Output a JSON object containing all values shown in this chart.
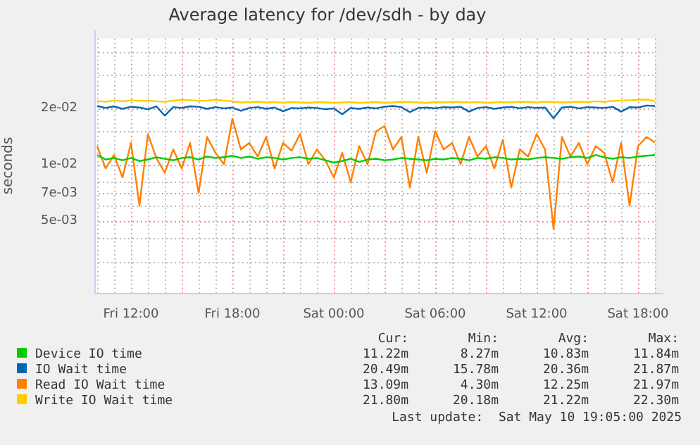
{
  "chart_data": {
    "type": "line",
    "title": "Average latency for /dev/sdh - by day",
    "ylabel": "seconds",
    "log": "y",
    "grid": true,
    "legend": "bottom",
    "marker": "none",
    "line_style": "solid",
    "x": [
      "2025-05-09T10:00",
      "2025-05-09T10:30",
      "2025-05-09T11:00",
      "2025-05-09T11:30",
      "2025-05-09T12:00",
      "2025-05-09T12:30",
      "2025-05-09T13:00",
      "2025-05-09T13:30",
      "2025-05-09T14:00",
      "2025-05-09T14:30",
      "2025-05-09T15:00",
      "2025-05-09T15:30",
      "2025-05-09T16:00",
      "2025-05-09T16:30",
      "2025-05-09T17:00",
      "2025-05-09T17:30",
      "2025-05-09T18:00",
      "2025-05-09T18:30",
      "2025-05-09T19:00",
      "2025-05-09T19:30",
      "2025-05-09T20:00",
      "2025-05-09T20:30",
      "2025-05-09T21:00",
      "2025-05-09T21:30",
      "2025-05-09T22:00",
      "2025-05-09T22:30",
      "2025-05-09T23:00",
      "2025-05-09T23:30",
      "2025-05-10T00:00",
      "2025-05-10T00:30",
      "2025-05-10T01:00",
      "2025-05-10T01:30",
      "2025-05-10T02:00",
      "2025-05-10T02:30",
      "2025-05-10T03:00",
      "2025-05-10T03:30",
      "2025-05-10T04:00",
      "2025-05-10T04:30",
      "2025-05-10T05:00",
      "2025-05-10T05:30",
      "2025-05-10T06:00",
      "2025-05-10T06:30",
      "2025-05-10T07:00",
      "2025-05-10T07:30",
      "2025-05-10T08:00",
      "2025-05-10T08:30",
      "2025-05-10T09:00",
      "2025-05-10T09:30",
      "2025-05-10T10:00",
      "2025-05-10T10:30",
      "2025-05-10T11:00",
      "2025-05-10T11:30",
      "2025-05-10T12:00",
      "2025-05-10T12:30",
      "2025-05-10T13:00",
      "2025-05-10T13:30",
      "2025-05-10T14:00",
      "2025-05-10T14:30",
      "2025-05-10T15:00",
      "2025-05-10T15:30",
      "2025-05-10T16:00",
      "2025-05-10T16:30",
      "2025-05-10T17:00",
      "2025-05-10T17:30",
      "2025-05-10T18:00",
      "2025-05-10T18:30",
      "2025-05-10T19:00"
    ],
    "xlim": [
      "2025-05-09T09:50",
      "2025-05-10T19:00"
    ],
    "xticks": [
      {
        "value": "2025-05-09T12:00",
        "label": "Fri 12:00"
      },
      {
        "value": "2025-05-09T18:00",
        "label": "Fri 18:00"
      },
      {
        "value": "2025-05-10T00:00",
        "label": "Sat 00:00"
      },
      {
        "value": "2025-05-10T06:00",
        "label": "Sat 06:00"
      },
      {
        "value": "2025-05-10T12:00",
        "label": "Sat 12:00"
      },
      {
        "value": "2025-05-10T18:00",
        "label": "Sat 18:00"
      }
    ],
    "ylim": [
      0.00205,
      0.047
    ],
    "yticks": [
      {
        "value": 0.003,
        "label": null
      },
      {
        "value": 0.004,
        "label": null
      },
      {
        "value": 0.005,
        "label": "5e-03"
      },
      {
        "value": 0.006,
        "label": null
      },
      {
        "value": 0.007,
        "label": "7e-03"
      },
      {
        "value": 0.008,
        "label": null
      },
      {
        "value": 0.01,
        "label": "1e-02"
      },
      {
        "value": 0.015,
        "label": null
      },
      {
        "value": 0.02,
        "label": "2e-02"
      },
      {
        "value": 0.03,
        "label": null
      },
      {
        "value": 0.04,
        "label": null
      }
    ],
    "series": [
      {
        "name": "Device IO time",
        "color": "#00cc00",
        "values": [
          0.0112,
          0.0106,
          0.0108,
          0.0105,
          0.0108,
          0.0104,
          0.0106,
          0.0109,
          0.0107,
          0.0105,
          0.0108,
          0.0109,
          0.0106,
          0.011,
          0.0108,
          0.0109,
          0.0111,
          0.0108,
          0.011,
          0.0107,
          0.0109,
          0.0108,
          0.0106,
          0.0108,
          0.0109,
          0.0107,
          0.0108,
          0.0105,
          0.0102,
          0.0104,
          0.0107,
          0.0103,
          0.0106,
          0.0107,
          0.0105,
          0.0106,
          0.0108,
          0.0107,
          0.0106,
          0.0105,
          0.0107,
          0.0106,
          0.0108,
          0.0107,
          0.0105,
          0.0108,
          0.0107,
          0.0109,
          0.0108,
          0.0106,
          0.0107,
          0.0106,
          0.0108,
          0.0109,
          0.0108,
          0.0107,
          0.0109,
          0.011,
          0.0108,
          0.0112,
          0.0109,
          0.0107,
          0.0109,
          0.0108,
          0.011,
          0.0111,
          0.0112
        ]
      },
      {
        "name": "IO Wait time",
        "color": "#0066b3",
        "values": [
          0.0205,
          0.02,
          0.0204,
          0.0198,
          0.0203,
          0.0201,
          0.0197,
          0.0204,
          0.0182,
          0.0202,
          0.02,
          0.0204,
          0.0203,
          0.0198,
          0.0202,
          0.0199,
          0.0201,
          0.0193,
          0.02,
          0.0202,
          0.0198,
          0.0201,
          0.0192,
          0.02,
          0.0199,
          0.0201,
          0.02,
          0.0197,
          0.0199,
          0.0185,
          0.02,
          0.0198,
          0.0201,
          0.0199,
          0.0203,
          0.0205,
          0.0202,
          0.019,
          0.02,
          0.0201,
          0.0199,
          0.0202,
          0.0201,
          0.0203,
          0.0191,
          0.02,
          0.0202,
          0.0198,
          0.0201,
          0.0203,
          0.0199,
          0.0202,
          0.02,
          0.0201,
          0.0176,
          0.0201,
          0.0203,
          0.0199,
          0.0202,
          0.0201,
          0.02,
          0.0203,
          0.0191,
          0.0202,
          0.0201,
          0.0206,
          0.0205
        ]
      },
      {
        "name": "Read IO Wait time",
        "color": "#ff8000",
        "values": [
          0.0125,
          0.0095,
          0.0112,
          0.0085,
          0.013,
          0.006,
          0.0145,
          0.0108,
          0.009,
          0.012,
          0.0095,
          0.013,
          0.007,
          0.014,
          0.0115,
          0.01,
          0.0175,
          0.012,
          0.013,
          0.011,
          0.014,
          0.0095,
          0.013,
          0.0118,
          0.0145,
          0.01,
          0.012,
          0.0105,
          0.0085,
          0.0115,
          0.008,
          0.0125,
          0.01,
          0.015,
          0.016,
          0.012,
          0.014,
          0.0075,
          0.014,
          0.009,
          0.015,
          0.012,
          0.013,
          0.01,
          0.014,
          0.011,
          0.0125,
          0.0095,
          0.0135,
          0.0075,
          0.012,
          0.011,
          0.0145,
          0.012,
          0.0045,
          0.014,
          0.011,
          0.013,
          0.01,
          0.0125,
          0.0115,
          0.008,
          0.013,
          0.006,
          0.0125,
          0.014,
          0.0131
        ]
      },
      {
        "name": "Write IO Wait time",
        "color": "#ffcc00",
        "values": [
          0.0218,
          0.0216,
          0.0219,
          0.0217,
          0.022,
          0.0218,
          0.0219,
          0.0217,
          0.0216,
          0.0219,
          0.0221,
          0.022,
          0.0218,
          0.0219,
          0.0221,
          0.0219,
          0.0217,
          0.0214,
          0.0215,
          0.0216,
          0.0214,
          0.0215,
          0.0213,
          0.0215,
          0.0214,
          0.0213,
          0.0215,
          0.0214,
          0.0213,
          0.0214,
          0.0215,
          0.0213,
          0.0214,
          0.0215,
          0.0213,
          0.0214,
          0.0216,
          0.0215,
          0.0214,
          0.0213,
          0.0215,
          0.0214,
          0.0216,
          0.0215,
          0.0214,
          0.0215,
          0.0213,
          0.0214,
          0.0215,
          0.0214,
          0.0216,
          0.0215,
          0.0214,
          0.0216,
          0.0215,
          0.0214,
          0.0215,
          0.0216,
          0.0215,
          0.0217,
          0.0216,
          0.0218,
          0.0219,
          0.022,
          0.0221,
          0.0222,
          0.0218
        ]
      }
    ],
    "annotations": [
      "Cur:",
      "Min:",
      "Avg:",
      "Max:",
      "11.22m",
      "8.27m",
      "10.83m",
      "11.84m",
      "20.49m",
      "15.78m",
      "20.36m",
      "21.87m",
      "13.09m",
      "4.30m",
      "12.25m",
      "21.97m",
      "21.80m",
      "20.18m",
      "21.22m",
      "22.30m",
      "Last update:  Sat May 10 19:05:00 2025"
    ]
  }
}
